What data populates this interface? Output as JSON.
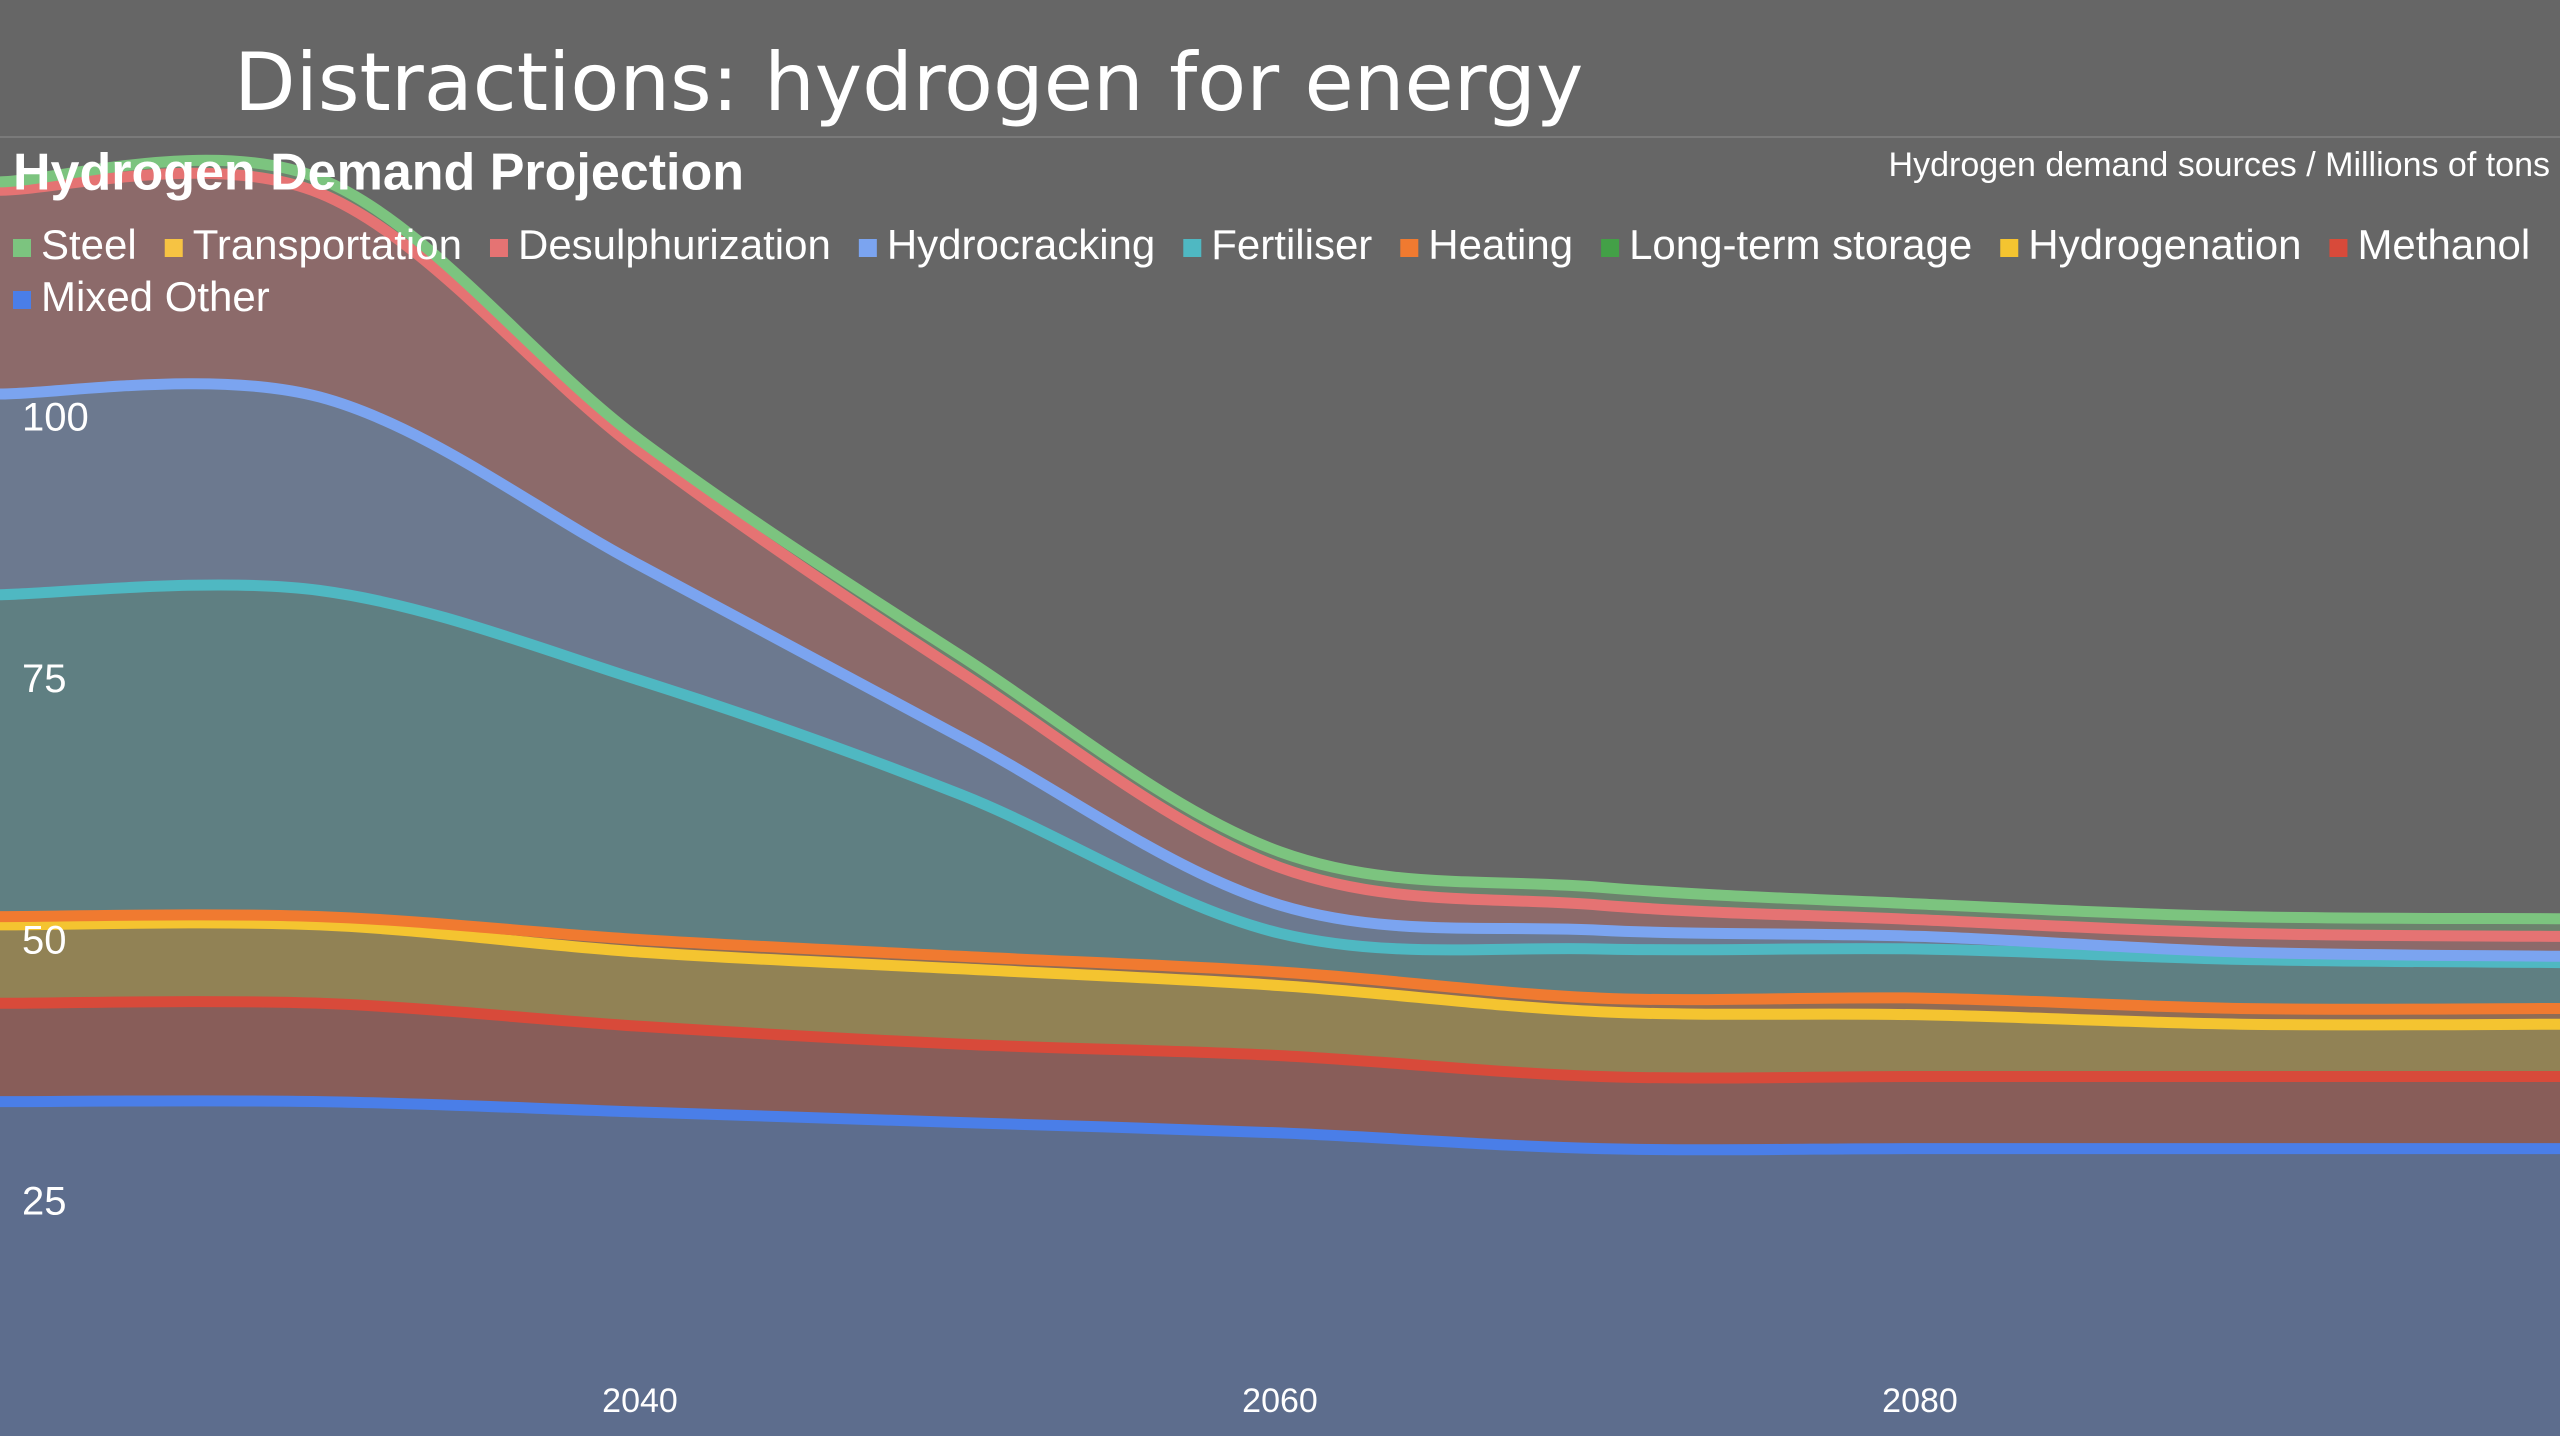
{
  "header": {
    "title": "Distractions: hydrogen for energy"
  },
  "chart_data": {
    "type": "stacked-area",
    "title": "Hydrogen Demand Projection",
    "subtitle": "Hydrogen demand sources / Millions of tons",
    "x": [
      2020,
      2030,
      2040,
      2050,
      2060,
      2070,
      2080,
      2090,
      2100
    ],
    "xlim": [
      2020,
      2100
    ],
    "xticks": [
      2040,
      2060,
      2080
    ],
    "ylim": [
      2.8,
      140.2
    ],
    "yticks": [
      25,
      50,
      75,
      100
    ],
    "legend": "top",
    "series": [
      {
        "name": "Mixed Other",
        "color": "#4a7ee8",
        "values": [
          32,
          32,
          31,
          30,
          29,
          27.5,
          27.5,
          27.5,
          27.5
        ]
      },
      {
        "name": "Methanol",
        "color": "#d84a3a",
        "values": [
          9.4,
          9.4,
          8.2,
          7.5,
          7.4,
          6.9,
          6.9,
          6.9,
          6.9
        ]
      },
      {
        "name": "Hydrogenation",
        "color": "#f4c430",
        "values": [
          7.5,
          7.5,
          7.1,
          7.2,
          6.7,
          6.2,
          5.9,
          5,
          5
        ]
      },
      {
        "name": "Long-term storage",
        "color": "#43a047",
        "values": [
          0,
          0,
          0,
          0,
          0,
          0,
          0,
          0,
          0
        ]
      },
      {
        "name": "Heating",
        "color": "#f07a30",
        "values": [
          0.8,
          0.8,
          1.2,
          1.2,
          1.3,
          1.3,
          1.6,
          1.5,
          1.5
        ]
      },
      {
        "name": "Fertiliser",
        "color": "#4fb8c2",
        "values": [
          30.8,
          31.2,
          24.8,
          15.5,
          3.7,
          4.7,
          4.7,
          4.7,
          4.4
        ]
      },
      {
        "name": "Hydrocracking",
        "color": "#7ba4f0",
        "values": [
          19.2,
          18.5,
          11,
          5.5,
          2.7,
          1.8,
          1.2,
          0.7,
          0.6
        ]
      },
      {
        "name": "Desulphurization",
        "color": "#e57373",
        "values": [
          19.5,
          19.5,
          10.9,
          6.2,
          3.6,
          2.4,
          1.6,
          1.8,
          1.9
        ]
      },
      {
        "name": "Transportation",
        "color": "#f6c343",
        "values": [
          0,
          0,
          0,
          0,
          0,
          0,
          0,
          0,
          0
        ]
      },
      {
        "name": "Steel",
        "color": "#7cc47f",
        "values": [
          0.8,
          1.4,
          1.1,
          1.6,
          1.5,
          1.7,
          1.5,
          1.6,
          1.7
        ]
      }
    ]
  }
}
